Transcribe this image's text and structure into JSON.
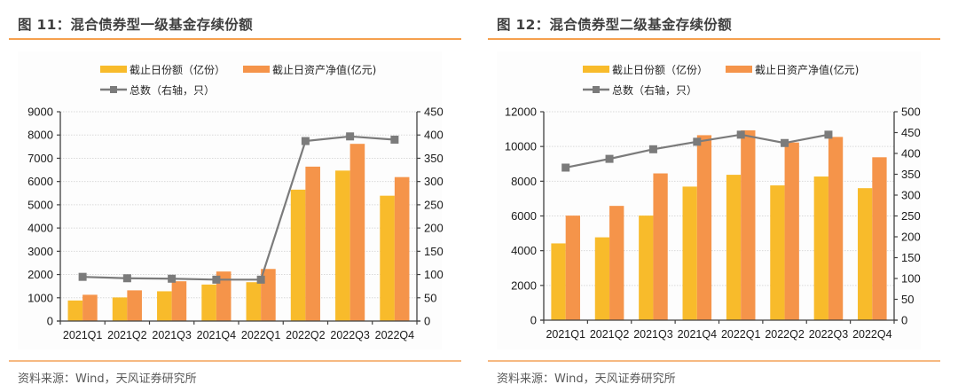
{
  "source_label": "资料来源：Wind，天风证券研究所",
  "colors": {
    "shares": "#f8bb2b",
    "nav": "#f5944a",
    "count": "#7b7b7b",
    "axis": "#404040",
    "grid": "#d9d9d9"
  },
  "chart_data": [
    {
      "type": "bar",
      "title": "图 11：混合债券型一级基金存续份额",
      "categories": [
        "2021Q1",
        "2021Q2",
        "2021Q3",
        "2021Q4",
        "2022Q1",
        "2022Q2",
        "2022Q3",
        "2022Q4"
      ],
      "series": [
        {
          "name": "截止日份额（亿份）",
          "type": "bar",
          "axis": "left",
          "values": [
            885,
            1015,
            1280,
            1570,
            1670,
            5650,
            6470,
            5390
          ]
        },
        {
          "name": "截止日资产净值(亿元)",
          "type": "bar",
          "axis": "left",
          "values": [
            1130,
            1320,
            1710,
            2130,
            2240,
            6640,
            7620,
            6190
          ]
        },
        {
          "name": "总数（右轴，只）",
          "type": "line",
          "axis": "right",
          "values": [
            95,
            92,
            91,
            89,
            89,
            387,
            397,
            390
          ]
        }
      ],
      "y_left": {
        "min": 0,
        "max": 9000,
        "step": 1000,
        "ticks": [
          "0",
          "1000",
          "2000",
          "3000",
          "4000",
          "5000",
          "6000",
          "7000",
          "8000",
          "9000"
        ]
      },
      "y_right": {
        "min": 0,
        "max": 450,
        "step": 50,
        "ticks": [
          "0",
          "50",
          "100",
          "150",
          "200",
          "250",
          "300",
          "350",
          "400",
          "450"
        ]
      },
      "grid": true,
      "legend": "top-center"
    },
    {
      "type": "bar",
      "title": "图 12：混合债券型二级基金存续份额",
      "categories": [
        "2021Q1",
        "2021Q2",
        "2021Q3",
        "2021Q4",
        "2022Q1",
        "2022Q2",
        "2022Q3",
        "2022Q4"
      ],
      "series": [
        {
          "name": "截止日份额（亿份）",
          "type": "bar",
          "axis": "left",
          "values": [
            4420,
            4770,
            6020,
            7690,
            8370,
            7760,
            8270,
            7600
          ]
        },
        {
          "name": "截止日资产净值(亿元)",
          "type": "bar",
          "axis": "left",
          "values": [
            6020,
            6580,
            8450,
            10650,
            10930,
            10230,
            10550,
            9380
          ]
        },
        {
          "name": "总数（右轴，只）",
          "type": "line",
          "axis": "right",
          "values": [
            366,
            387,
            410,
            428,
            445,
            425,
            445,
            null
          ]
        }
      ],
      "y_left": {
        "min": 0,
        "max": 12000,
        "step": 2000,
        "ticks": [
          "0",
          "2000",
          "4000",
          "6000",
          "8000",
          "10000",
          "12000"
        ]
      },
      "y_right": {
        "min": 0,
        "max": 500,
        "step": 50,
        "ticks": [
          "0",
          "50",
          "100",
          "150",
          "200",
          "250",
          "300",
          "350",
          "400",
          "450",
          "500"
        ]
      },
      "grid": true,
      "legend": "top-center"
    }
  ]
}
